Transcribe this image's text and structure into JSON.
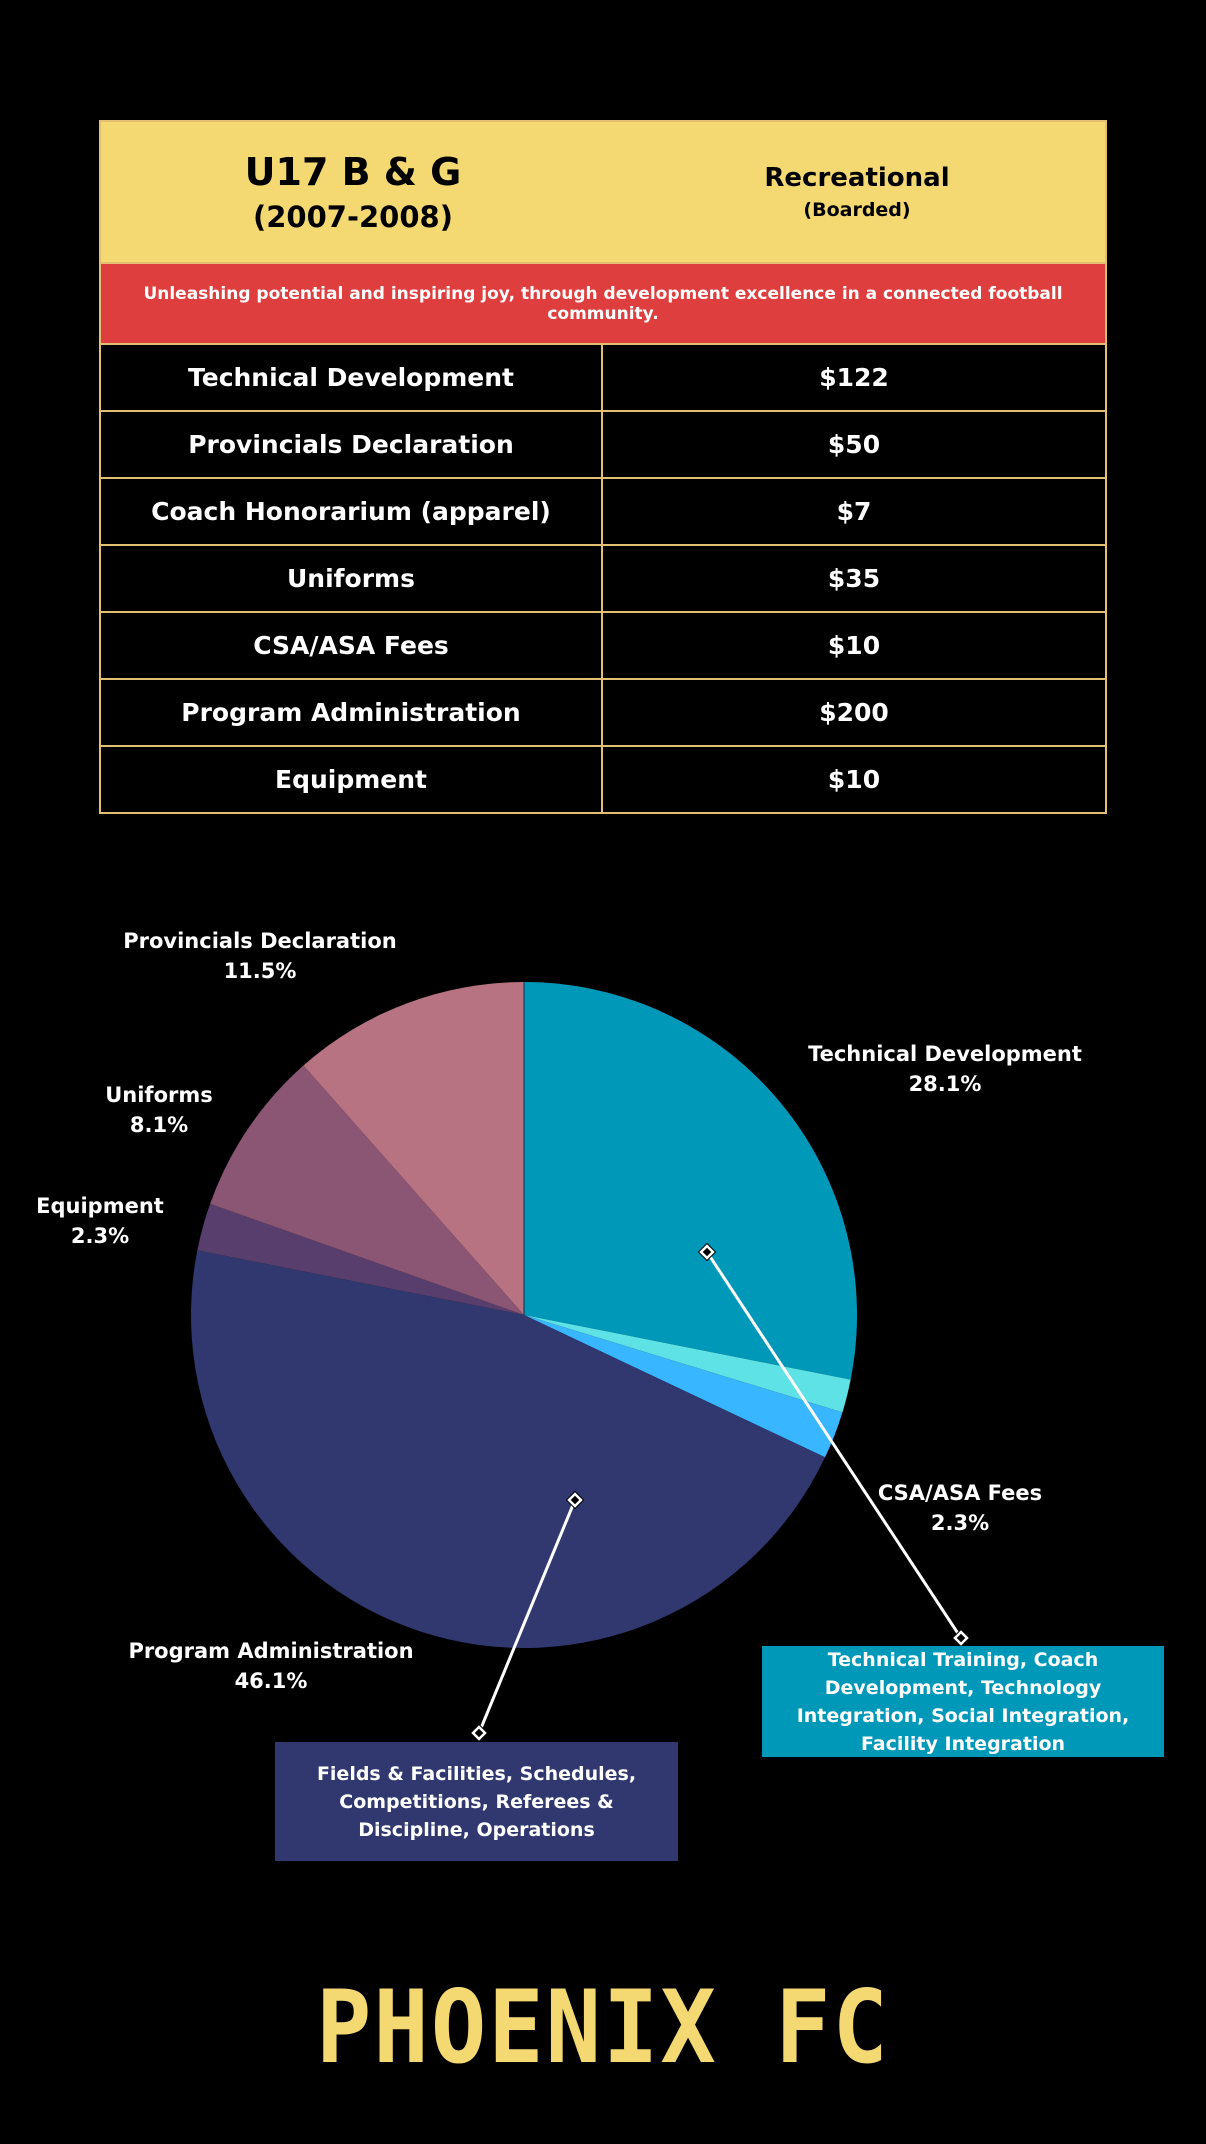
{
  "header": {
    "age_group": "U17 B & G",
    "birth_years": "(2007-2008)",
    "program": "Recreational",
    "program_note": "(Boarded)"
  },
  "mission": "Unleashing potential and inspiring joy, through development excellence in a connected football community.",
  "fees": [
    {
      "label": "Technical Development",
      "amount": "$122"
    },
    {
      "label": "Provincials Declaration",
      "amount": "$50"
    },
    {
      "label": "Coach Honorarium (apparel)",
      "amount": "$7"
    },
    {
      "label": "Uniforms",
      "amount": "$35"
    },
    {
      "label": "CSA/ASA Fees",
      "amount": "$10"
    },
    {
      "label": "Program Administration",
      "amount": "$200"
    },
    {
      "label": "Equipment",
      "amount": "$10"
    }
  ],
  "chart_data": {
    "type": "pie",
    "title": "",
    "slices": [
      {
        "name": "Technical Development",
        "value": 122,
        "percent_label": "28.1%",
        "color": "#0098b8"
      },
      {
        "name": "Coach Honorarium (apparel)",
        "value": 7,
        "percent_label": "",
        "color": "#5ee2e6"
      },
      {
        "name": "CSA/ASA Fees",
        "value": 10,
        "percent_label": "2.3%",
        "color": "#38b6ff"
      },
      {
        "name": "Program Administration",
        "value": 200,
        "percent_label": "46.1%",
        "color": "#30386f"
      },
      {
        "name": "Equipment",
        "value": 10,
        "percent_label": "2.3%",
        "color": "#583e6c"
      },
      {
        "name": "Uniforms",
        "value": 35,
        "percent_label": "8.1%",
        "color": "#8a5673"
      },
      {
        "name": "Provincials Declaration",
        "value": 50,
        "percent_label": "11.5%",
        "color": "#b87383"
      }
    ],
    "callouts": [
      {
        "slice": "Technical Development",
        "text": "Technical Training, Coach Development, Technology Integration, Social Integration, Facility Integration",
        "color": "#0098b8"
      },
      {
        "slice": "Program Administration",
        "text": "Fields & Facilities, Schedules, Competitions, Referees & Discipline, Operations",
        "color": "#30386f"
      }
    ]
  },
  "logo_text": "PHOENIX FC",
  "colors": {
    "background": "#000000",
    "header_yellow": "#f4d973",
    "mission_red": "#de3e3e",
    "border_gold": "#e2bf73"
  }
}
